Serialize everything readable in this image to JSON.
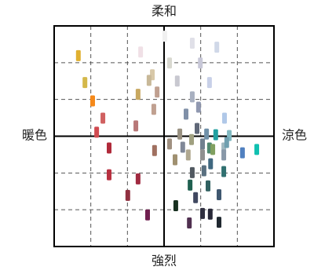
{
  "chart_data": {
    "type": "scatter",
    "label_top": "柔和",
    "label_bottom": "強烈",
    "label_left": "暖色",
    "label_right": "涼色",
    "xlim": [
      -3,
      3
    ],
    "ylim": [
      -3,
      3
    ],
    "xticks": [
      -3,
      -2,
      -1,
      0,
      1,
      2,
      3
    ],
    "yticks": [
      -3,
      -2,
      -1,
      0,
      1,
      2,
      3
    ],
    "grid": true,
    "x": [
      -2.34,
      -2.16,
      -1.95,
      -1.67,
      -1.84,
      -1.5,
      -1.5,
      -0.71,
      -0.99,
      -0.45,
      -0.64,
      -0.32,
      -0.41,
      -0.71,
      -0.19,
      -0.28,
      -0.77,
      -0.26,
      0.02,
      0.77,
      1.44,
      0.15,
      0.99,
      0.36,
      1.24,
      0.77,
      0.94,
      0.6,
      1.65,
      0.9,
      0.43,
      0.75,
      1.16,
      1.41,
      1.78,
      0.15,
      1.05,
      0.51,
      1.24,
      1.33,
      1.63,
      1.71,
      2.14,
      2.53,
      0.66,
      0.3,
      1.05,
      1.63,
      1.27,
      0.77,
      1.09,
      1.63,
      0.71,
      1.2,
      0.86,
      1.5,
      0.32,
      1.05,
      1.26,
      1.5,
      0.69
    ],
    "y": [
      2.19,
      1.46,
      0.96,
      0.49,
      0.11,
      -0.32,
      -1.05,
      -1.16,
      -1.61,
      -2.14,
      2.29,
      1.67,
      1.52,
      1.14,
      1.2,
      0.73,
      0.28,
      -0.39,
      2.72,
      2.53,
      2.42,
      1.99,
      1.99,
      1.5,
      1.46,
      1.07,
      0.79,
      0.6,
      0.49,
      0.21,
      0.06,
      -0.09,
      0.06,
      0.04,
      0.02,
      -0.21,
      -0.21,
      -0.3,
      -0.32,
      -0.36,
      -0.32,
      -0.17,
      -0.45,
      -0.36,
      -0.51,
      -0.64,
      -0.51,
      -0.51,
      -0.75,
      -0.99,
      -0.94,
      -0.96,
      -1.33,
      -1.35,
      -1.67,
      -1.59,
      -1.89,
      -2.1,
      -2.12,
      -2.34,
      -2.36
    ],
    "colors": [
      "#e0b030",
      "#d4b84a",
      "#f5891a",
      "#d06060",
      "#d04a50",
      "#b02a3a",
      "#b83040",
      "#a02a40",
      "#903040",
      "#702050",
      "#f0e0e6",
      "#d8c8a8",
      "#c8b898",
      "#c8a860",
      "#c0a090",
      "#c0a090",
      "#b87878",
      "#a07060",
      "#f0f0f0",
      "#e0e0e8",
      "#d0d8e8",
      "#d8d8d0",
      "#c8c8d8",
      "#c8c8d0",
      "#c8d0e8",
      "#a8b0c0",
      "#9098b0",
      "#8090a8",
      "#b0c8e8",
      "#606878",
      "#989080",
      "#a0a080",
      "#7090a8",
      "#20a0a0",
      "#80b8c0",
      "#a09080",
      "#708090",
      "#808898",
      "#508870",
      "#80a060",
      "#a0b8c0",
      "#70a0b0",
      "#5080c0",
      "#10c0b0",
      "#b0a890",
      "#a09070",
      "#909090",
      "#8898a8",
      "#406880",
      "#505860",
      "#5a7080",
      "#307070",
      "#206050",
      "#306060",
      "#404860",
      "#405870",
      "#183020",
      "#303040",
      "#282838",
      "#202830",
      "#503050"
    ]
  }
}
